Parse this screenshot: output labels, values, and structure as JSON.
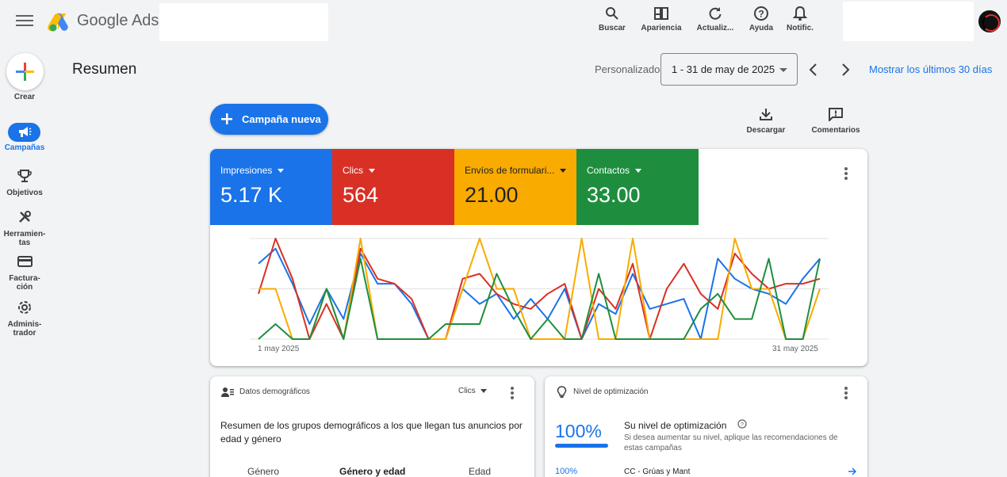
{
  "app": {
    "brand_google": "Google",
    "brand_ads": "Ads"
  },
  "toolbar": [
    {
      "label": "Buscar",
      "icon": "search-icon"
    },
    {
      "label": "Apariencia",
      "icon": "appearance-icon"
    },
    {
      "label": "Actualiz...",
      "icon": "refresh-icon"
    },
    {
      "label": "Ayuda",
      "icon": "help-icon"
    },
    {
      "label": "Notific.",
      "icon": "bell-icon"
    }
  ],
  "sidebar": {
    "create_label": "Crear",
    "items": [
      {
        "label": "Campañas",
        "icon": "campaigns-icon",
        "active": true
      },
      {
        "label": "Objetivos",
        "icon": "trophy-icon"
      },
      {
        "label": "Herramien-tas",
        "line1": "Herramien-",
        "line2": "tas",
        "icon": "tools-icon"
      },
      {
        "label": "Factura-ción",
        "line1": "Factura-",
        "line2": "ción",
        "icon": "billing-icon"
      },
      {
        "label": "Adminis-trador",
        "line1": "Adminis-",
        "line2": "trador",
        "icon": "gear-icon"
      }
    ]
  },
  "header": {
    "title": "Resumen",
    "date_mode": "Personalizado",
    "date_range": "1 - 31 de may de 2025",
    "show_last_30": "Mostrar los últimos 30 días"
  },
  "actions": {
    "new_campaign": "Campaña nueva",
    "download": "Descargar",
    "comments": "Comentarios"
  },
  "metrics": [
    {
      "label": "Impresiones",
      "value": "5.17 K",
      "color": "#1a73e8"
    },
    {
      "label": "Clics",
      "value": "564",
      "color": "#d93025"
    },
    {
      "label": "Envíos de formulari...",
      "value": "21.00",
      "color": "#f9ab00"
    },
    {
      "label": "Contactos",
      "value": "33.00",
      "color": "#1e8e3e"
    }
  ],
  "chart_data": {
    "type": "line",
    "x_start_label": "1 may 2025",
    "x_end_label": "31 may 2025",
    "series": [
      {
        "name": "Impresiones",
        "color": "#1a73e8",
        "values": [
          0.75,
          0.9,
          0.55,
          0.15,
          0.5,
          0.2,
          0.85,
          0.55,
          0.55,
          0.35,
          0.0,
          0.0,
          0.5,
          0.35,
          0.45,
          0.2,
          0.4,
          0.2,
          0.5,
          0.0,
          0.35,
          0.25,
          0.65,
          0.3,
          0.35,
          0.4,
          0.0,
          0.8,
          0.6,
          0.5,
          0.45,
          0.35,
          0.6,
          0.8
        ]
      },
      {
        "name": "Clics",
        "color": "#d93025",
        "values": [
          0.45,
          1.0,
          0.6,
          0.0,
          0.35,
          0.0,
          0.9,
          0.6,
          0.55,
          0.4,
          0.0,
          0.0,
          0.6,
          0.65,
          0.45,
          0.35,
          0.3,
          0.45,
          0.55,
          0.0,
          0.5,
          0.3,
          0.75,
          0.0,
          0.5,
          0.75,
          0.45,
          0.3,
          0.85,
          0.65,
          0.5,
          0.55,
          0.55,
          0.6
        ]
      },
      {
        "name": "Envíos de formularios",
        "color": "#f9ab00",
        "values": [
          0.5,
          0.5,
          0.0,
          0.0,
          0.5,
          0.0,
          1.0,
          0.0,
          0.0,
          0.0,
          0.0,
          0.0,
          0.5,
          1.0,
          0.5,
          0.5,
          0.0,
          0.0,
          0.0,
          1.0,
          0.0,
          0.0,
          1.0,
          0.0,
          0.0,
          0.0,
          0.0,
          0.0,
          1.0,
          0.5,
          0.5,
          0.0,
          0.0,
          0.5
        ]
      },
      {
        "name": "Contactos",
        "color": "#1e8e3e",
        "values": [
          0.0,
          0.15,
          0.0,
          0.0,
          0.5,
          0.0,
          0.8,
          0.0,
          0.0,
          0.0,
          0.0,
          0.15,
          0.15,
          0.15,
          0.65,
          0.3,
          0.0,
          0.2,
          0.0,
          0.0,
          0.65,
          0.0,
          0.0,
          0.0,
          0.0,
          0.0,
          0.3,
          0.45,
          0.2,
          0.2,
          0.8,
          0.0,
          0.0,
          0.8
        ]
      }
    ],
    "grid": true
  },
  "demographics": {
    "title": "Datos demográficos",
    "metric_select": "Clics",
    "summary": "Resumen de los grupos demográficos a los que llegan tus anuncios por edad y género",
    "tabs": [
      "Género",
      "Género y edad",
      "Edad"
    ]
  },
  "optimization": {
    "title": "Nivel de optimización",
    "score": "100%",
    "score_fraction": 1.0,
    "heading": "Su nivel de optimización",
    "description": "Si desea aumentar su nivel, aplique las recomendaciones de estas campañas",
    "row_score": "100%",
    "row_campaign": "CC - Grúas y Mant"
  }
}
